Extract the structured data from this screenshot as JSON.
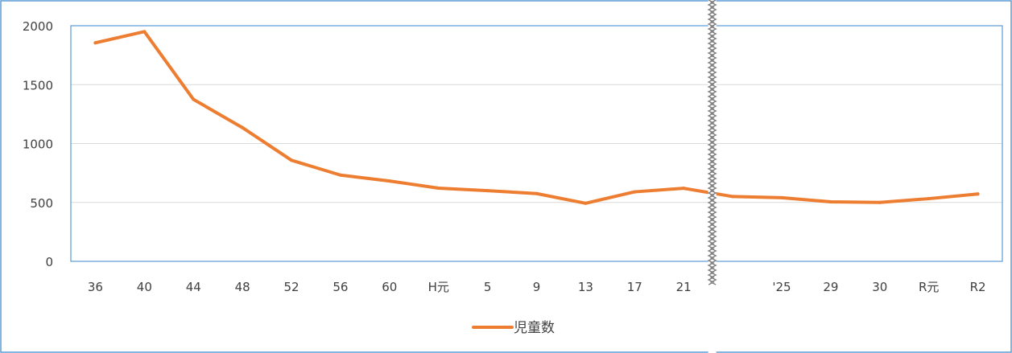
{
  "chart_data": {
    "type": "line",
    "title": "",
    "xlabel": "",
    "ylabel": "",
    "categories": [
      "36",
      "40",
      "44",
      "48",
      "52",
      "56",
      "60",
      "H元",
      "5",
      "9",
      "13",
      "17",
      "21",
      "25",
      "25",
      "29",
      "30",
      "R元",
      "R2"
    ],
    "category_labels_visible": [
      "36",
      "40",
      "44",
      "48",
      "52",
      "56",
      "60",
      "H元",
      "5",
      "9",
      "13",
      "17",
      "21",
      "",
      "'25",
      "29",
      "30",
      "R元",
      "R2"
    ],
    "series": [
      {
        "name": "児童数",
        "values": [
          1855,
          1950,
          1375,
          1135,
          858,
          732,
          682,
          621,
          600,
          575,
          493,
          590,
          620,
          550,
          540,
          505,
          500,
          532,
          572
        ]
      }
    ],
    "ylim": [
      0,
      2000
    ],
    "yticks": [
      "0",
      "500",
      "1000",
      "1500",
      "2000"
    ],
    "grid": true,
    "legend": "bottom",
    "axis_break": true,
    "colors": {
      "line": "#ED7D31",
      "plot_border": "#5B9BD5",
      "grid": "#D9D9D9",
      "text": "#404040",
      "break": "#808080"
    }
  }
}
